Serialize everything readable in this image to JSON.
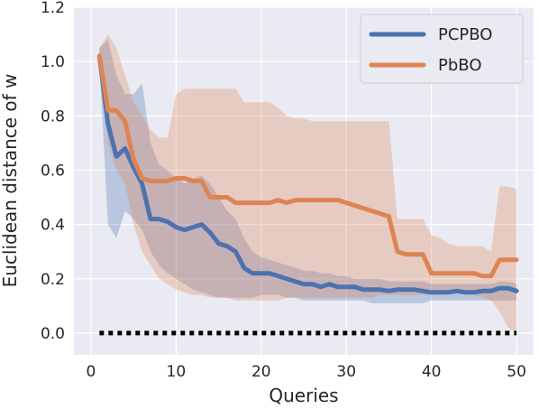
{
  "chart_data": {
    "type": "line",
    "xlabel": "Queries",
    "ylabel": "Euclidean distance of w",
    "xlim": [
      -2,
      52
    ],
    "ylim": [
      -0.08,
      1.2
    ],
    "xticks": [
      0,
      10,
      20,
      30,
      40,
      50
    ],
    "yticks": [
      0.0,
      0.2,
      0.4,
      0.6,
      0.8,
      1.0,
      1.2
    ],
    "xtick_labels": [
      "0",
      "10",
      "20",
      "30",
      "40",
      "50"
    ],
    "ytick_labels": [
      "0.0",
      "0.2",
      "0.4",
      "0.6",
      "0.8",
      "1.0",
      "1.2"
    ],
    "grid": true,
    "legend_position": "top-right",
    "x": [
      1,
      2,
      3,
      4,
      5,
      6,
      7,
      8,
      9,
      10,
      11,
      12,
      13,
      14,
      15,
      16,
      17,
      18,
      19,
      20,
      21,
      22,
      23,
      24,
      25,
      26,
      27,
      28,
      29,
      30,
      31,
      32,
      33,
      34,
      35,
      36,
      37,
      38,
      39,
      40,
      41,
      42,
      43,
      44,
      45,
      46,
      47,
      48,
      49,
      50
    ],
    "series": [
      {
        "name": "PCPBO",
        "color": "#4c72b0",
        "values": [
          1.02,
          0.77,
          0.65,
          0.68,
          0.61,
          0.55,
          0.42,
          0.42,
          0.41,
          0.39,
          0.38,
          0.39,
          0.4,
          0.37,
          0.33,
          0.32,
          0.3,
          0.24,
          0.22,
          0.22,
          0.22,
          0.21,
          0.2,
          0.19,
          0.18,
          0.18,
          0.17,
          0.18,
          0.17,
          0.17,
          0.17,
          0.16,
          0.16,
          0.16,
          0.155,
          0.16,
          0.16,
          0.16,
          0.155,
          0.15,
          0.15,
          0.15,
          0.155,
          0.15,
          0.15,
          0.155,
          0.155,
          0.165,
          0.165,
          0.155
        ],
        "lower": [
          1.0,
          0.4,
          0.35,
          0.45,
          0.42,
          0.38,
          0.3,
          0.25,
          0.22,
          0.2,
          0.18,
          0.16,
          0.15,
          0.14,
          0.13,
          0.13,
          0.13,
          0.13,
          0.13,
          0.14,
          0.14,
          0.14,
          0.13,
          0.13,
          0.12,
          0.12,
          0.12,
          0.12,
          0.12,
          0.12,
          0.12,
          0.12,
          0.11,
          0.11,
          0.11,
          0.11,
          0.11,
          0.11,
          0.11,
          0.12,
          0.12,
          0.12,
          0.12,
          0.12,
          0.12,
          0.12,
          0.12,
          0.12,
          0.12,
          0.12
        ],
        "upper": [
          1.05,
          1.08,
          0.95,
          0.88,
          0.88,
          0.92,
          0.7,
          0.62,
          0.6,
          0.57,
          0.55,
          0.57,
          0.58,
          0.55,
          0.5,
          0.45,
          0.42,
          0.35,
          0.3,
          0.28,
          0.27,
          0.26,
          0.25,
          0.24,
          0.23,
          0.23,
          0.22,
          0.22,
          0.21,
          0.21,
          0.2,
          0.2,
          0.2,
          0.2,
          0.19,
          0.19,
          0.19,
          0.19,
          0.19,
          0.18,
          0.18,
          0.18,
          0.18,
          0.18,
          0.18,
          0.18,
          0.18,
          0.19,
          0.19,
          0.18
        ]
      },
      {
        "name": "PbBO",
        "color": "#dd8452",
        "values": [
          1.02,
          0.82,
          0.82,
          0.78,
          0.64,
          0.57,
          0.56,
          0.56,
          0.56,
          0.57,
          0.57,
          0.56,
          0.56,
          0.5,
          0.5,
          0.5,
          0.48,
          0.48,
          0.48,
          0.48,
          0.48,
          0.49,
          0.48,
          0.49,
          0.49,
          0.49,
          0.49,
          0.49,
          0.49,
          0.48,
          0.47,
          0.46,
          0.45,
          0.44,
          0.43,
          0.3,
          0.29,
          0.29,
          0.29,
          0.22,
          0.22,
          0.22,
          0.22,
          0.22,
          0.22,
          0.21,
          0.21,
          0.27,
          0.27,
          0.27
        ],
        "lower": [
          1.0,
          0.7,
          0.6,
          0.55,
          0.4,
          0.3,
          0.25,
          0.2,
          0.18,
          0.16,
          0.15,
          0.14,
          0.14,
          0.13,
          0.13,
          0.13,
          0.12,
          0.12,
          0.12,
          0.12,
          0.12,
          0.12,
          0.13,
          0.13,
          0.13,
          0.13,
          0.13,
          0.13,
          0.13,
          0.13,
          0.13,
          0.13,
          0.13,
          0.14,
          0.14,
          0.14,
          0.14,
          0.14,
          0.14,
          0.14,
          0.14,
          0.15,
          0.15,
          0.15,
          0.14,
          0.13,
          0.12,
          0.08,
          0.02,
          0.0
        ],
        "upper": [
          1.05,
          1.1,
          1.05,
          0.95,
          0.85,
          0.8,
          0.75,
          0.72,
          0.72,
          0.88,
          0.9,
          0.9,
          0.9,
          0.9,
          0.9,
          0.9,
          0.9,
          0.85,
          0.85,
          0.85,
          0.85,
          0.83,
          0.8,
          0.79,
          0.79,
          0.78,
          0.78,
          0.78,
          0.78,
          0.78,
          0.78,
          0.78,
          0.78,
          0.78,
          0.78,
          0.42,
          0.42,
          0.42,
          0.42,
          0.36,
          0.35,
          0.33,
          0.32,
          0.32,
          0.32,
          0.32,
          0.3,
          0.54,
          0.54,
          0.53
        ]
      },
      {
        "name": "",
        "color": "#000000",
        "style": "dotted",
        "values": [
          0,
          0,
          0,
          0,
          0,
          0,
          0,
          0,
          0,
          0,
          0,
          0,
          0,
          0,
          0,
          0,
          0,
          0,
          0,
          0,
          0,
          0,
          0,
          0,
          0,
          0,
          0,
          0,
          0,
          0,
          0,
          0,
          0,
          0,
          0,
          0,
          0,
          0,
          0,
          0,
          0,
          0,
          0,
          0,
          0,
          0,
          0,
          0,
          0,
          0
        ]
      }
    ]
  }
}
